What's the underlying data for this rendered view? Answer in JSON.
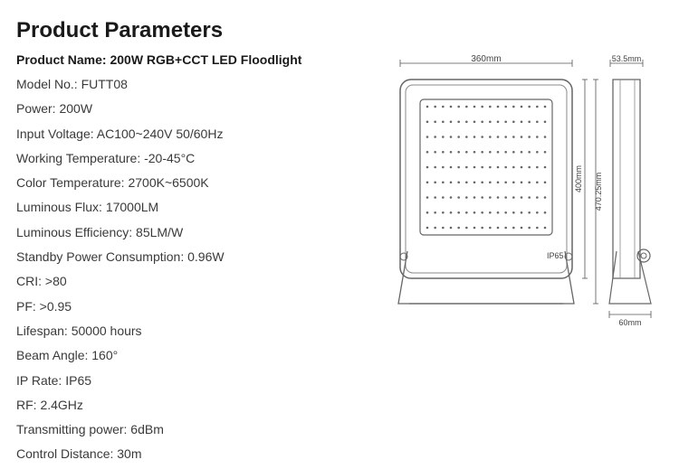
{
  "title": "Product Parameters",
  "product_name_label": "Product Name:",
  "product_name_value": "200W RGB+CCT LED Floodlight",
  "specs": [
    {
      "label": "Model No.:",
      "value": "FUTT08"
    },
    {
      "label": "Power:",
      "value": "200W"
    },
    {
      "label": "Input Voltage:",
      "value": "AC100~240V 50/60Hz"
    },
    {
      "label": "Working Temperature:",
      "value": "-20-45°C"
    },
    {
      "label": "Color Temperature:",
      "value": "2700K~6500K"
    },
    {
      "label": "Luminous Flux:",
      "value": "17000LM"
    },
    {
      "label": "Luminous Efficiency:",
      "value": "85LM/W"
    },
    {
      "label": "Standby Power Consumption:",
      "value": "0.96W"
    },
    {
      "label": "CRI:",
      "value": ">80"
    },
    {
      "label": "PF:",
      "value": ">0.95"
    },
    {
      "label": "Lifespan:",
      "value": "50000 hours"
    },
    {
      "label": "Beam Angle:",
      "value": "160°"
    },
    {
      "label": "IP Rate:",
      "value": "IP65"
    },
    {
      "label": "RF:",
      "value": "2.4GHz"
    },
    {
      "label": "Transmitting power:",
      "value": "6dBm"
    },
    {
      "label": "Control Distance:",
      "value": "30m"
    }
  ],
  "diagram": {
    "width_label": "360mm",
    "depth_label": "53.5mm",
    "height_inner_label": "400mm",
    "height_outer_label": "470.25mm",
    "base_label": "60mm",
    "ip_label": "IP65",
    "stroke": "#666666",
    "stroke_light": "#888888",
    "fill": "#ffffff",
    "text_color": "#444444",
    "dim_stroke": "#555555",
    "grid_rows": 9,
    "grid_cols": 16
  }
}
